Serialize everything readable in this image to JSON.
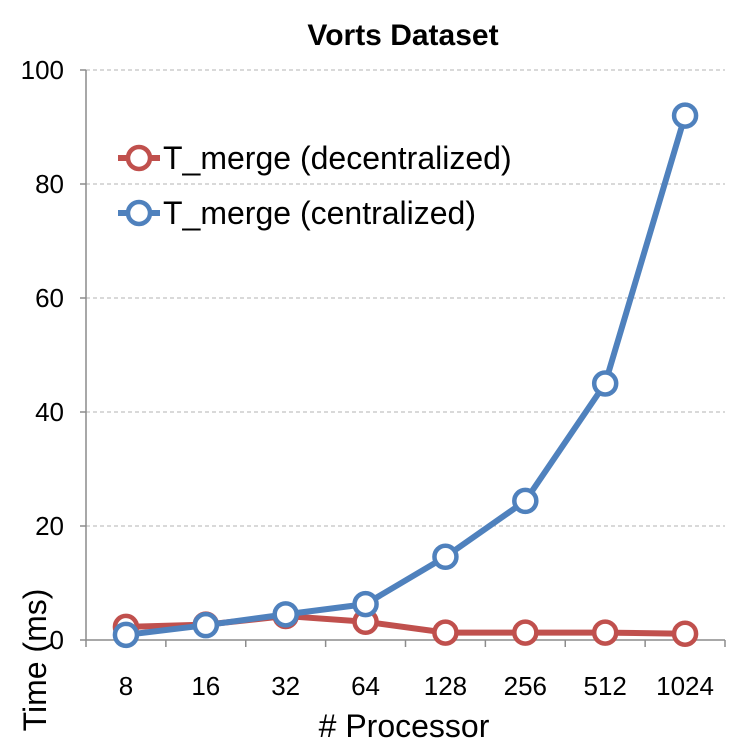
{
  "chart_data": {
    "type": "line",
    "title": "Vorts Dataset",
    "xlabel": "# Processor",
    "ylabel": "Time (ms)",
    "categories": [
      "8",
      "16",
      "32",
      "64",
      "128",
      "256",
      "512",
      "1024"
    ],
    "ylim": [
      0,
      100
    ],
    "yticks": [
      0,
      20,
      40,
      60,
      80,
      100
    ],
    "grid": true,
    "legend_position": "top-left",
    "series": [
      {
        "name": "T_merge (decentralized)",
        "color": "#c0504d",
        "values": [
          2.3,
          2.7,
          4.2,
          3.2,
          1.3,
          1.3,
          1.3,
          1.1
        ]
      },
      {
        "name": "T_merge (centralized)",
        "color": "#4f81bd",
        "values": [
          0.9,
          2.6,
          4.5,
          6.3,
          14.6,
          24.4,
          45.0,
          92.0
        ]
      }
    ]
  }
}
